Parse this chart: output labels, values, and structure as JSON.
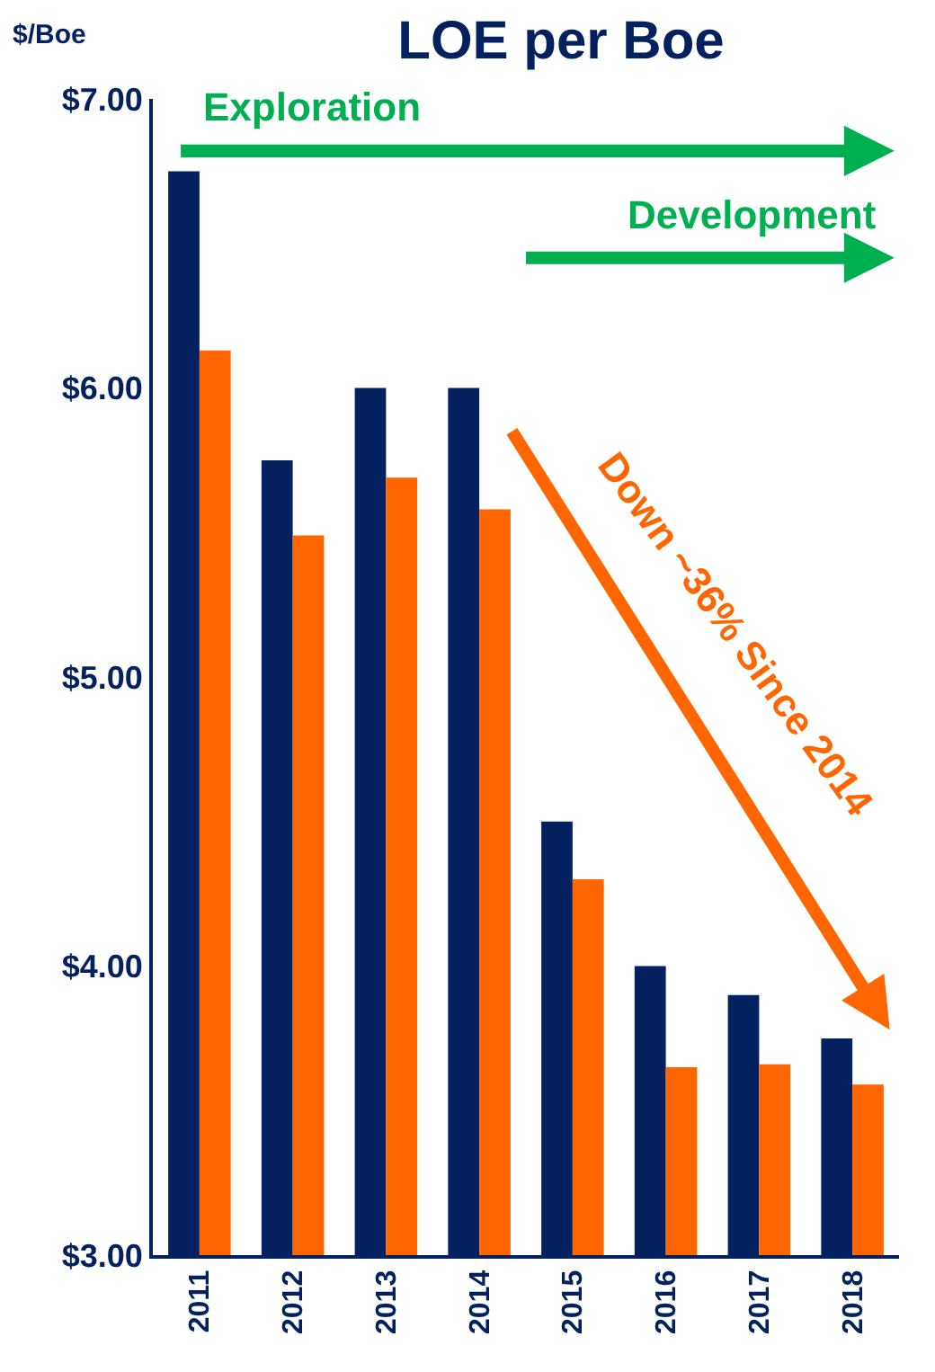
{
  "chart_data": {
    "type": "bar",
    "title": "LOE per Boe",
    "ylabel": "$/Boe",
    "categories": [
      "2011",
      "2012",
      "2013",
      "2014",
      "2015",
      "2016",
      "2017",
      "2018"
    ],
    "series": [
      {
        "color": "#03215e",
        "values": [
          6.75,
          5.75,
          6.0,
          6.0,
          4.5,
          4.0,
          3.9,
          3.75
        ]
      },
      {
        "color": "#ff6600",
        "values": [
          6.13,
          5.49,
          5.69,
          5.58,
          4.3,
          3.65,
          3.66,
          3.59
        ]
      }
    ],
    "ylim": [
      3,
      7
    ],
    "yticks": [
      {
        "value": 3,
        "label": "$3.00"
      },
      {
        "value": 4,
        "label": "$4.00"
      },
      {
        "value": 5,
        "label": "$5.00"
      },
      {
        "value": 6,
        "label": "$6.00"
      },
      {
        "value": 7,
        "label": "$7.00"
      }
    ],
    "annotations": [
      "Exploration",
      "Development",
      "Down ~36% Since 2014"
    ]
  }
}
